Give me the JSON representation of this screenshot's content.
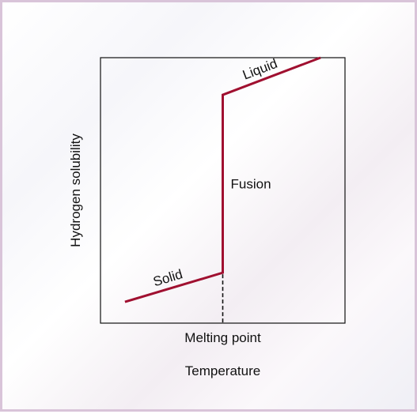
{
  "chart_data": {
    "type": "line",
    "title": "",
    "xlabel": "Temperature",
    "ylabel": "Hydrogen solubility",
    "xlim": [
      0,
      10
    ],
    "ylim": [
      0,
      10
    ],
    "grid": false,
    "series": [
      {
        "x": [
          1.0,
          5.0,
          5.0,
          9.0
        ],
        "y": [
          0.8,
          1.9,
          8.6,
          10.0
        ]
      }
    ],
    "segment_labels": {
      "solid": "Solid",
      "fusion": "Fusion",
      "liquid": "Liquid"
    },
    "melting_point": {
      "x": 5.0,
      "label": "Melting point"
    },
    "line_color": "#a01030",
    "frame_color": "#111111"
  }
}
